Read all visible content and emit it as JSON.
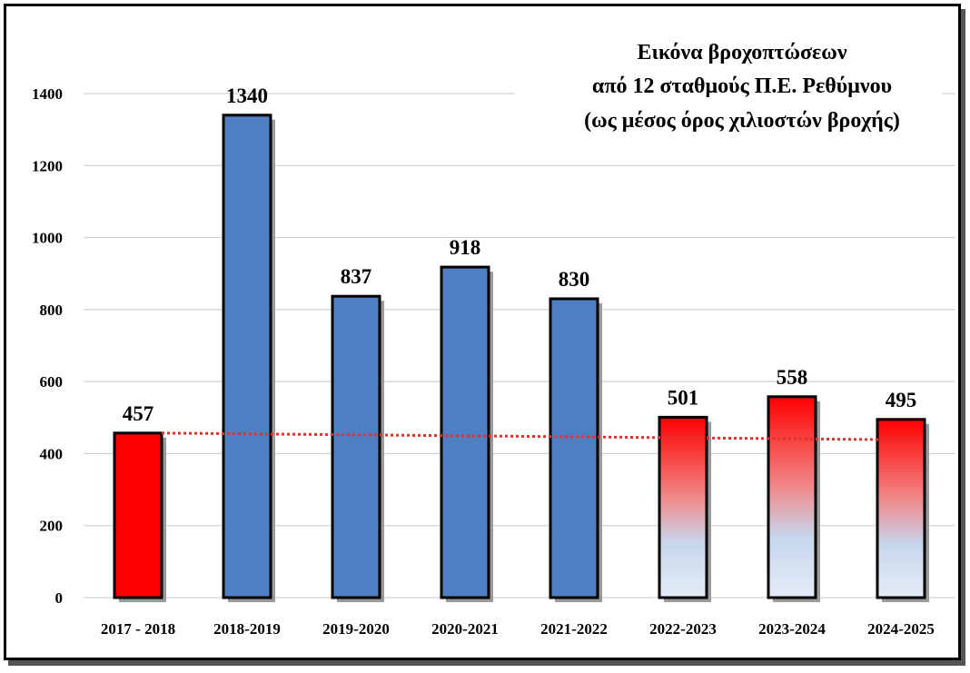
{
  "chart_data": {
    "type": "bar",
    "title": "Εικόνα βροχοπτώσεων",
    "subtitle_lines": [
      "από 12 σταθμούς Π.Ε. Ρεθύμνου",
      "(ως μέσος όρος χιλιοστών βροχής)"
    ],
    "categories": [
      "2017 - 2018",
      "2018-2019",
      "2019-2020",
      "2020-2021",
      "2021-2022",
      "2022-2023",
      "2023-2024",
      "2024-2025"
    ],
    "values": [
      457,
      1340,
      837,
      918,
      830,
      501,
      558,
      495
    ],
    "value_labels": [
      "457",
      "1340",
      "837",
      "918",
      "830",
      "501",
      "558",
      "495"
    ],
    "bar_styles": [
      "red",
      "blue",
      "blue",
      "blue",
      "blue",
      "gradient",
      "gradient",
      "gradient"
    ],
    "yticks": [
      0,
      200,
      400,
      600,
      800,
      1000,
      1200,
      1400
    ],
    "ylim": [
      0,
      1400
    ],
    "grid": true,
    "reference_line": {
      "start_value": 457,
      "end_value": 438,
      "style": "dotted",
      "color": "#e8302a"
    },
    "colors": {
      "red": "#ff0000",
      "blue": "#4f7ec3",
      "gradient_top": "#ff0000",
      "gradient_bottom": "#dce8f4",
      "grid": "#c8c8c8"
    }
  }
}
